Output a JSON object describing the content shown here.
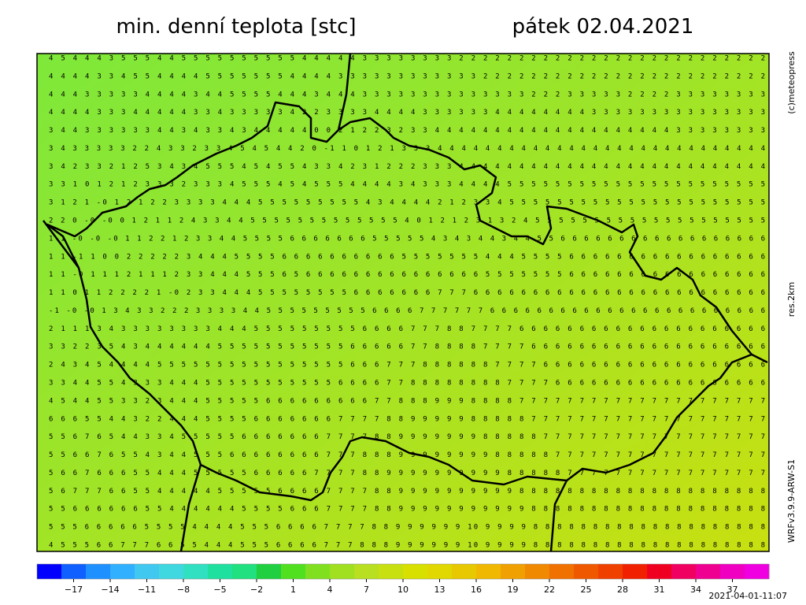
{
  "header": {
    "title": "min. denní teplota [stc]",
    "date": "pátek 02.04.2021"
  },
  "map": {
    "grid": [
      "4 5 4 4 4 3 5 5 5 4 4 5 5 5 5 5 5 5 5 5 5 4 4 4 4 4 3 3 3 3 3 3 3 3 2 2 2 2 2 2 2 2 2 2 2 2 2 2 2 2 2 2 2 2 2 2 2 2 2 2",
      "4 4 4 4 3 3 4 5 5 4 4 4 4 5 5 5 5 5 5 5 4 4 4 4 3 3 3 3 3 3 3 3 3 3 3 3 2 2 2 2 2 2 2 2 2 2 2 2 2 2 2 2 2 2 2 2 2 2 2 2",
      "4 4 4 3 3 3 3 3 4 4 4 4 3 4 4 5 5 5 5 4 4 4 3 4 4 4 3 3 3 3 3 3 3 3 3 3 3 3 3 3 2 2 2 3 3 3 3 3 2 2 2 2 3 3 3 3 3 3 3 3",
      "4 4 4 4 3 3 3 4 4 4 4 4 3 3 4 3 3 3 3 3 4 2 2 3 3 3 3 4 4 4 4 3 3 3 3 3 3 4 4 4 4 4 4 4 4 3 3 3 3 3 3 3 3 3 3 3 3 3 3 3",
      "3 4 4 3 3 3 3 3 3 4 4 3 4 3 3 4 3 4 4 4 4 4 0 0 2 1 2 2 3 2 3 3 4 4 4 4 4 4 4 4 4 4 4 4 4 4 4 4 4 4 4 4 3 3 3 3 3 3 3 3",
      "3 4 3 3 3 3 3 2 2 4 3 3 2 3 3 4 5 4 5 4 4 2 0 -1 1 0 1 2 1 3 3 3 4 4 4 4 4 4 4 4 4 4 4 4 4 4 4 4 4 4 4 4 4 4 4 4 4 4 4 4",
      "3 4 2 3 3 2 1 2 5 3 4 3 4 5 5 5 4 5 4 5 5 4 3 3 4 2 3 1 2 2 2 3 3 3 4 4 4 4 4 4 4 4 4 4 4 4 4 4 4 4 4 4 4 4 4 4 4 4 4 4",
      "3 3 1 0 1 2 1 2 3 3 3 2 3 3 3 4 5 5 5 4 5 4 5 5 5 4 4 4 4 3 4 3 3 3 4 4 4 4 5 5 5 5 5 5 5 5 5 5 5 5 5 5 5 5 5 5 5 5 5 5",
      "3 1 2 1 -0 1 2 1 2 2 3 3 3 3 4 4 4 5 5 5 5 5 5 5 5 5 4 3 4 4 4 4 2 1 2 3 3 4 5 5 5 5 5 5 5 5 5 5 5 5 5 5 5 5 5 5 5 5 5 5",
      "2 2 0 -0 -0 0 1 2 1 1 2 4 3 3 4 4 5 5 5 5 5 5 5 5 5 5 5 5 5 4 0 1 2 1 2 3 1 3 2 4 5 5 5 5 5 5 5 5 5 5 5 5 5 5 5 5 5 5 5 5",
      "1 1 -0 -0 -0 1 1 2 2 1 2 3 3 4 4 5 5 5 5 6 6 6 6 6 6 6 5 5 5 5 5 4 3 4 3 4 4 3 4 4 5 5 6 6 6 6 6 6 6 6 6 6 6 6 6 6 6 6 6 6",
      "1 1 -1 1 0 0 2 2 2 2 2 3 4 4 4 5 5 5 5 6 6 6 6 6 6 6 6 6 6 5 5 5 5 5 5 5 4 4 4 5 5 5 5 6 6 6 6 6 6 6 6 6 6 6 6 6 6 6 6 6",
      "1 1 -0 1 1 1 2 1 1 1 2 3 3 4 4 4 5 5 5 6 5 6 6 6 6 6 6 6 6 6 6 6 6 6 6 6 5 5 5 5 5 5 5 6 6 6 6 6 6 6 6 6 6 6 6 6 6 6 6 6",
      "1 1 0 1 1 2 2 2 2 1 -0 2 3 3 4 4 4 5 5 5 5 5 5 5 5 6 6 6 6 6 6 6 7 7 7 6 6 6 6 6 6 6 6 6 6 6 6 6 6 6 6 6 6 6 6 6 6 6 6 6",
      "-1 -0 -0 1 3 4 3 3 2 2 2 3 3 3 3 4 4 5 5 5 5 5 5 5 5 5 6 6 6 6 7 7 7 7 7 7 6 6 6 6 6 6 6 6 6 6 6 6 6 6 6 6 6 6 6 6 6 6 6 6",
      "2 1 1 1 3 4 3 3 3 3 3 3 3 3 4 4 4 5 5 5 5 5 5 5 5 5 6 6 6 6 7 7 7 8 8 7 7 7 7 6 6 6 6 6 6 6 6 6 6 6 6 6 6 6 6 6 6 6 6 6",
      "3 3 2 2 3 5 4 3 4 4 4 4 4 4 5 5 5 5 5 5 5 5 5 5 5 6 6 6 6 6 7 7 8 8 8 8 7 7 7 7 6 6 6 6 6 6 6 6 6 6 6 6 6 6 6 6 6 6 6 6",
      "2 4 3 4 5 4 4 4 4 5 5 5 5 5 5 5 5 5 5 5 5 5 5 5 5 6 6 6 7 7 7 8 8 8 8 8 8 7 7 7 7 6 6 6 6 6 6 6 6 6 6 6 6 6 6 6 6 6 6 6",
      "3 3 4 4 5 5 4 3 3 3 4 4 4 5 5 5 5 5 5 5 5 5 5 5 6 6 6 6 7 7 8 8 8 8 8 8 8 8 7 7 7 7 6 6 6 6 6 6 6 6 6 6 6 6 6 6 6 6 6 6",
      "4 5 4 4 5 5 3 3 2 3 4 4 4 5 5 5 5 5 6 6 6 6 6 6 6 6 6 7 7 8 8 8 9 9 9 8 8 8 8 7 7 7 7 7 7 7 7 7 7 7 7 7 7 7 7 7 7 7 7 7",
      "6 6 6 5 5 4 4 3 2 2 4 4 4 5 5 5 5 6 6 6 6 6 6 6 7 7 7 7 8 8 9 9 9 9 9 8 8 8 8 8 7 7 7 7 7 7 7 7 7 7 7 7 7 7 7 7 7 7 7 7",
      "5 5 6 7 6 5 4 4 3 3 4 5 5 5 5 5 6 6 6 6 6 6 6 7 7 7 7 8 8 9 9 9 9 9 9 9 8 8 8 8 8 7 7 7 7 7 7 7 7 7 7 7 7 7 7 7 7 7 7 7",
      "5 5 6 6 7 6 5 5 4 3 4 4 5 5 5 6 6 6 6 6 6 6 6 7 7 7 8 8 8 9 9 9 9 9 9 9 9 8 8 8 8 8 7 7 7 7 7 7 7 7 7 7 7 7 7 7 7 7 7 7",
      "5 6 6 7 6 6 6 5 5 4 4 4 5 5 5 5 5 6 6 6 6 6 7 7 7 7 8 8 9 9 9 9 9 9 9 9 9 9 8 8 8 8 8 7 7 7 7 7 7 7 7 7 7 7 7 7 7 7 7 7",
      "5 6 7 7 7 6 6 5 5 4 4 4 4 4 5 5 5 5 5 6 6 6 6 7 7 7 7 8 8 9 9 9 9 9 9 9 9 9 9 8 8 8 8 8 8 8 8 8 8 8 8 8 8 8 8 8 8 8 8 8",
      "5 5 6 6 6 6 6 6 5 5 4 4 4 4 4 4 5 5 5 5 6 6 6 7 7 7 7 8 8 9 9 9 9 9 9 9 9 9 9 9 8 8 8 8 8 8 8 8 8 8 8 8 8 8 8 8 8 8 8 8",
      "5 5 5 6 6 6 6 6 5 5 5 5 4 4 4 4 5 5 5 6 6 6 6 7 7 7 7 8 8 9 9 9 9 9 9 10 9 9 9 9 8 8 8 8 8 8 8 8 8 8 8 8 8 8 8 8 8 8 8 8",
      "4 5 5 5 6 6 7 7 7 6 6 5 5 4 4 4 5 5 5 6 6 6 6 7 7 7 8 8 8 9 9 9 9 9 9 10 9 9 9 9 8 8 8 8 8 8 8 8 8 8 8 8 8 8 8 8 8 8 8 8"
    ]
  },
  "side": {
    "copyright": "(c)meteopress",
    "resolution": "res.2km",
    "model": "WRFv3.9.9-ARW-S1"
  },
  "legend": {
    "range": [
      -20,
      40
    ],
    "colors": [
      "#0000ff",
      "#1060ff",
      "#1e90ff",
      "#30b0ff",
      "#40c8f0",
      "#40d8e0",
      "#30e0c0",
      "#20e0a0",
      "#20e080",
      "#20d040",
      "#50e020",
      "#80e020",
      "#a0e020",
      "#b8e020",
      "#c8e010",
      "#d8e000",
      "#e0d800",
      "#e8c800",
      "#f0b800",
      "#f0a000",
      "#f08800",
      "#f07000",
      "#f05800",
      "#f04000",
      "#f02000",
      "#f00020",
      "#f00060",
      "#f00090",
      "#f000c0",
      "#f000e0"
    ],
    "ticks": [
      {
        "value": -17,
        "label": "−17"
      },
      {
        "value": -14,
        "label": "−14"
      },
      {
        "value": -11,
        "label": "−11"
      },
      {
        "value": -8,
        "label": "−8"
      },
      {
        "value": -5,
        "label": "−5"
      },
      {
        "value": -2,
        "label": "−2"
      },
      1,
      4,
      7,
      10,
      13,
      16,
      19,
      22,
      25,
      28,
      31,
      34,
      37
    ]
  },
  "footer": {
    "timestamp": "2021-04-01-11:07"
  }
}
